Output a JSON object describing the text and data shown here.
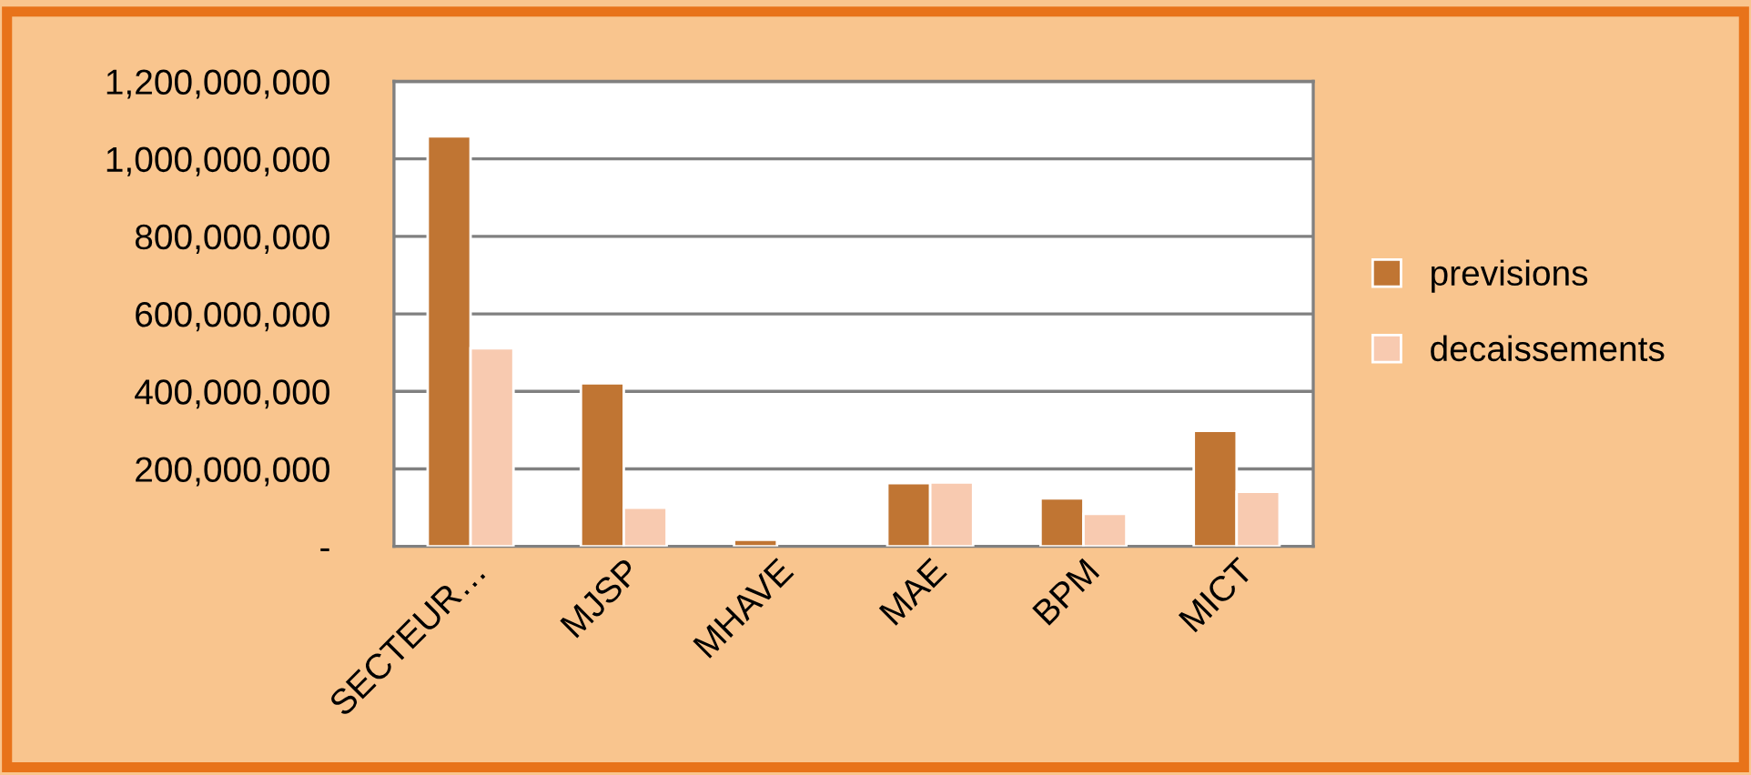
{
  "chart_data": {
    "type": "bar",
    "categories": [
      "SECTEUR…",
      "MJSP",
      "MHAVE",
      "MAE",
      "BPM",
      "MICT"
    ],
    "series": [
      {
        "name": "previsions",
        "color": "#c07533",
        "values": [
          1058000000,
          421000000,
          17000000,
          163000000,
          124000000,
          298000000
        ]
      },
      {
        "name": "decaissements",
        "color": "#f8cab0",
        "values": [
          511000000,
          100000000,
          null,
          165000000,
          84000000,
          141000000
        ]
      }
    ],
    "ylim": [
      0,
      1200000000
    ],
    "yticks": [
      {
        "value": 0,
        "label": "-"
      },
      {
        "value": 200000000,
        "label": "200,000,000"
      },
      {
        "value": 400000000,
        "label": "400,000,000"
      },
      {
        "value": 600000000,
        "label": "600,000,000"
      },
      {
        "value": 800000000,
        "label": "800,000,000"
      },
      {
        "value": 1000000000,
        "label": "1,000,000,000"
      },
      {
        "value": 1200000000,
        "label": "1,200,000,000"
      }
    ],
    "grid": "y",
    "legend": "right"
  }
}
